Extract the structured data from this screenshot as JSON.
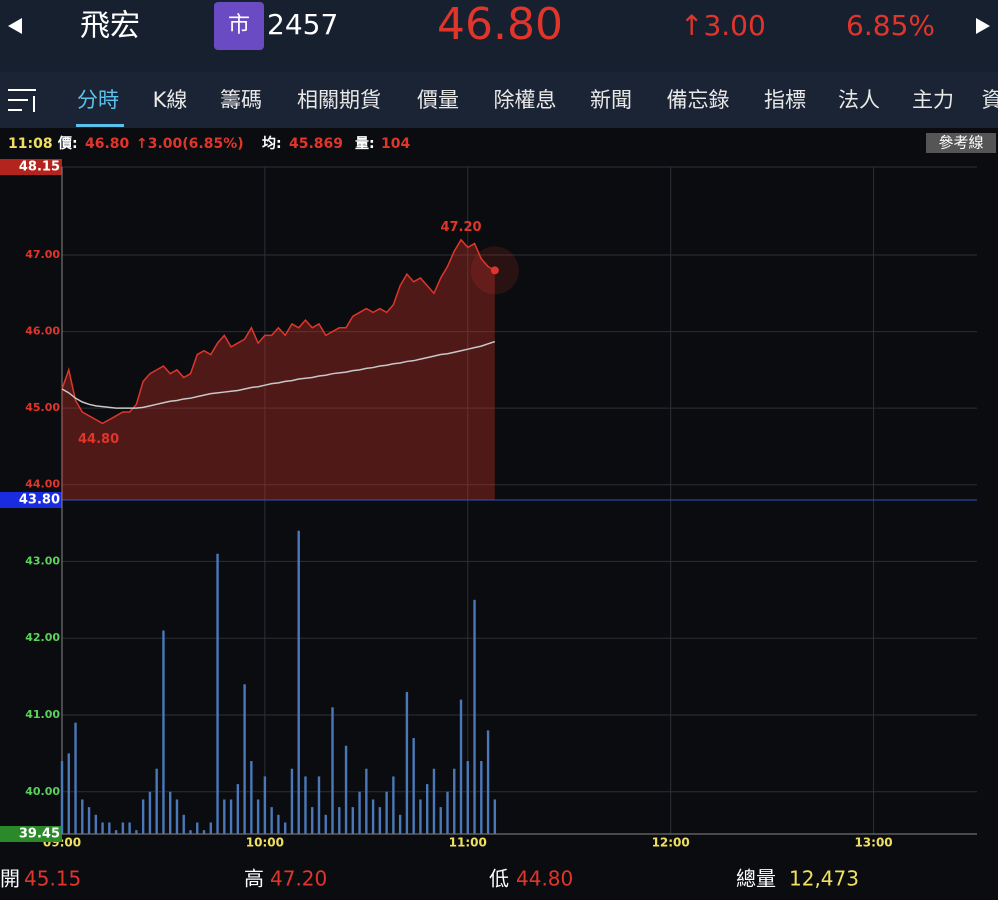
{
  "header": {
    "name": "飛宏",
    "market": "市",
    "code": "2457",
    "price": "46.80",
    "change": "↑3.00",
    "change_pct": "6.85%"
  },
  "tabs": [
    "分時",
    "K線",
    "籌碼",
    "相關期貨",
    "價量",
    "除權息",
    "新聞",
    "備忘錄",
    "指標",
    "法人",
    "主力",
    "資"
  ],
  "info_bar": {
    "time": "11:08",
    "price_label": "價:",
    "price": "46.80",
    "change": "↑3.00(6.85%)",
    "avg_label": "均:",
    "avg": "45.869",
    "volume_label": "量:",
    "volume": "104",
    "button": "參考線"
  },
  "chart_data": [
    {
      "type": "line",
      "x": [
        0,
        2,
        4,
        6,
        8,
        10,
        12,
        14,
        16,
        18,
        20,
        22,
        24,
        26,
        28,
        30,
        32,
        34,
        36,
        38,
        40,
        42,
        44,
        46,
        48,
        50,
        52,
        54,
        56,
        58,
        60,
        62,
        64,
        66,
        68,
        70,
        72,
        74,
        76,
        78,
        80,
        82,
        84,
        86,
        88,
        90,
        92,
        94,
        96,
        98,
        100,
        102,
        104,
        106,
        108,
        110,
        112,
        114,
        116,
        118,
        120,
        122,
        124,
        126,
        128
      ],
      "xlim": [
        0,
        270
      ],
      "ylim": [
        43.8,
        48.15
      ],
      "yticks": [
        48.15,
        {
          "value": 47,
          "label": "47.00"
        },
        {
          "value": 46,
          "label": "46.00"
        },
        {
          "value": 45,
          "label": "45.00"
        },
        {
          "value": 44,
          "label": "44.00"
        },
        {
          "value": 43.8,
          "label": "43.80"
        }
      ],
      "series": [
        {
          "color": "#e0352b",
          "values": [
            45.25,
            45.5,
            45.1,
            44.95,
            44.9,
            44.85,
            44.8,
            44.85,
            44.9,
            44.95,
            44.95,
            45.05,
            45.35,
            45.45,
            45.5,
            45.55,
            45.45,
            45.5,
            45.4,
            45.45,
            45.7,
            45.75,
            45.7,
            45.85,
            45.95,
            45.8,
            45.85,
            45.9,
            46.05,
            45.85,
            45.95,
            45.95,
            46.05,
            45.95,
            46.1,
            46.05,
            46.15,
            46.05,
            46.1,
            45.95,
            46.0,
            46.05,
            46.05,
            46.2,
            46.25,
            46.3,
            46.25,
            46.3,
            46.25,
            46.35,
            46.6,
            46.75,
            46.65,
            46.7,
            46.6,
            46.5,
            46.7,
            46.85,
            47.05,
            47.2,
            47.1,
            47.15,
            46.95,
            46.85,
            46.8
          ]
        },
        {
          "color": "#c8c8c8",
          "values": [
            45.25,
            45.2,
            45.13,
            45.08,
            45.05,
            45.03,
            45.02,
            45.01,
            45.0,
            45.0,
            45.0,
            45.0,
            45.01,
            45.03,
            45.05,
            45.07,
            45.09,
            45.1,
            45.12,
            45.13,
            45.15,
            45.17,
            45.19,
            45.2,
            45.21,
            45.22,
            45.23,
            45.25,
            45.27,
            45.28,
            45.3,
            45.32,
            45.33,
            45.35,
            45.36,
            45.38,
            45.39,
            45.4,
            45.42,
            45.43,
            45.45,
            45.46,
            45.47,
            45.49,
            45.5,
            45.52,
            45.53,
            45.55,
            45.56,
            45.58,
            45.59,
            45.61,
            45.62,
            45.64,
            45.66,
            45.68,
            45.7,
            45.71,
            45.73,
            45.75,
            45.77,
            45.79,
            45.81,
            45.84,
            45.87
          ]
        }
      ],
      "annotations": [
        "47.20",
        "44.80"
      ],
      "grid": true
    },
    {
      "type": "bar",
      "x": [
        0,
        2,
        4,
        6,
        8,
        10,
        12,
        14,
        16,
        18,
        20,
        22,
        24,
        26,
        28,
        30,
        32,
        34,
        36,
        38,
        40,
        42,
        44,
        46,
        48,
        50,
        52,
        54,
        56,
        58,
        60,
        62,
        64,
        66,
        68,
        70,
        72,
        74,
        76,
        78,
        80,
        82,
        84,
        86,
        88,
        90,
        92,
        94,
        96,
        98,
        100,
        102,
        104,
        106,
        108,
        110,
        112,
        114,
        116,
        118,
        120,
        122,
        124,
        126,
        128
      ],
      "xlim": [
        0,
        270
      ],
      "ylim": [
        39.45,
        43.8
      ],
      "yticks": [
        {
          "value": 43,
          "label": "43.00"
        },
        {
          "value": 42,
          "label": "42.00"
        },
        {
          "value": 41,
          "label": "41.00"
        },
        {
          "value": 40,
          "label": "40.00"
        },
        39.45
      ],
      "xticks": [
        {
          "value": 0,
          "label": "09:00"
        },
        {
          "value": 60,
          "label": "10:00"
        },
        {
          "value": 120,
          "label": "11:00"
        },
        {
          "value": 180,
          "label": "12:00"
        },
        {
          "value": 240,
          "label": "13:00"
        }
      ],
      "values": [
        40.4,
        40.5,
        40.9,
        39.9,
        39.8,
        39.7,
        39.6,
        39.6,
        39.5,
        39.6,
        39.6,
        39.5,
        39.9,
        40.0,
        40.3,
        42.1,
        40.0,
        39.9,
        39.7,
        39.5,
        39.6,
        39.5,
        39.6,
        43.1,
        39.9,
        39.9,
        40.1,
        41.4,
        40.4,
        39.9,
        40.2,
        39.8,
        39.7,
        39.6,
        40.3,
        43.4,
        40.2,
        39.8,
        40.2,
        39.7,
        41.1,
        39.8,
        40.6,
        39.8,
        40.0,
        40.3,
        39.9,
        39.8,
        40.0,
        40.2,
        39.7,
        41.3,
        40.7,
        39.9,
        40.1,
        40.3,
        39.8,
        40.0,
        40.3,
        41.2,
        40.4,
        42.5,
        40.4,
        40.8,
        39.9
      ],
      "color": "#4a78b8",
      "grid": true
    }
  ],
  "footer": [
    {
      "label": "開",
      "value": "45.15"
    },
    {
      "label": "高",
      "value": "47.20"
    },
    {
      "label": "低",
      "value": "44.80"
    },
    {
      "label": "總量",
      "value": "12,473"
    }
  ]
}
